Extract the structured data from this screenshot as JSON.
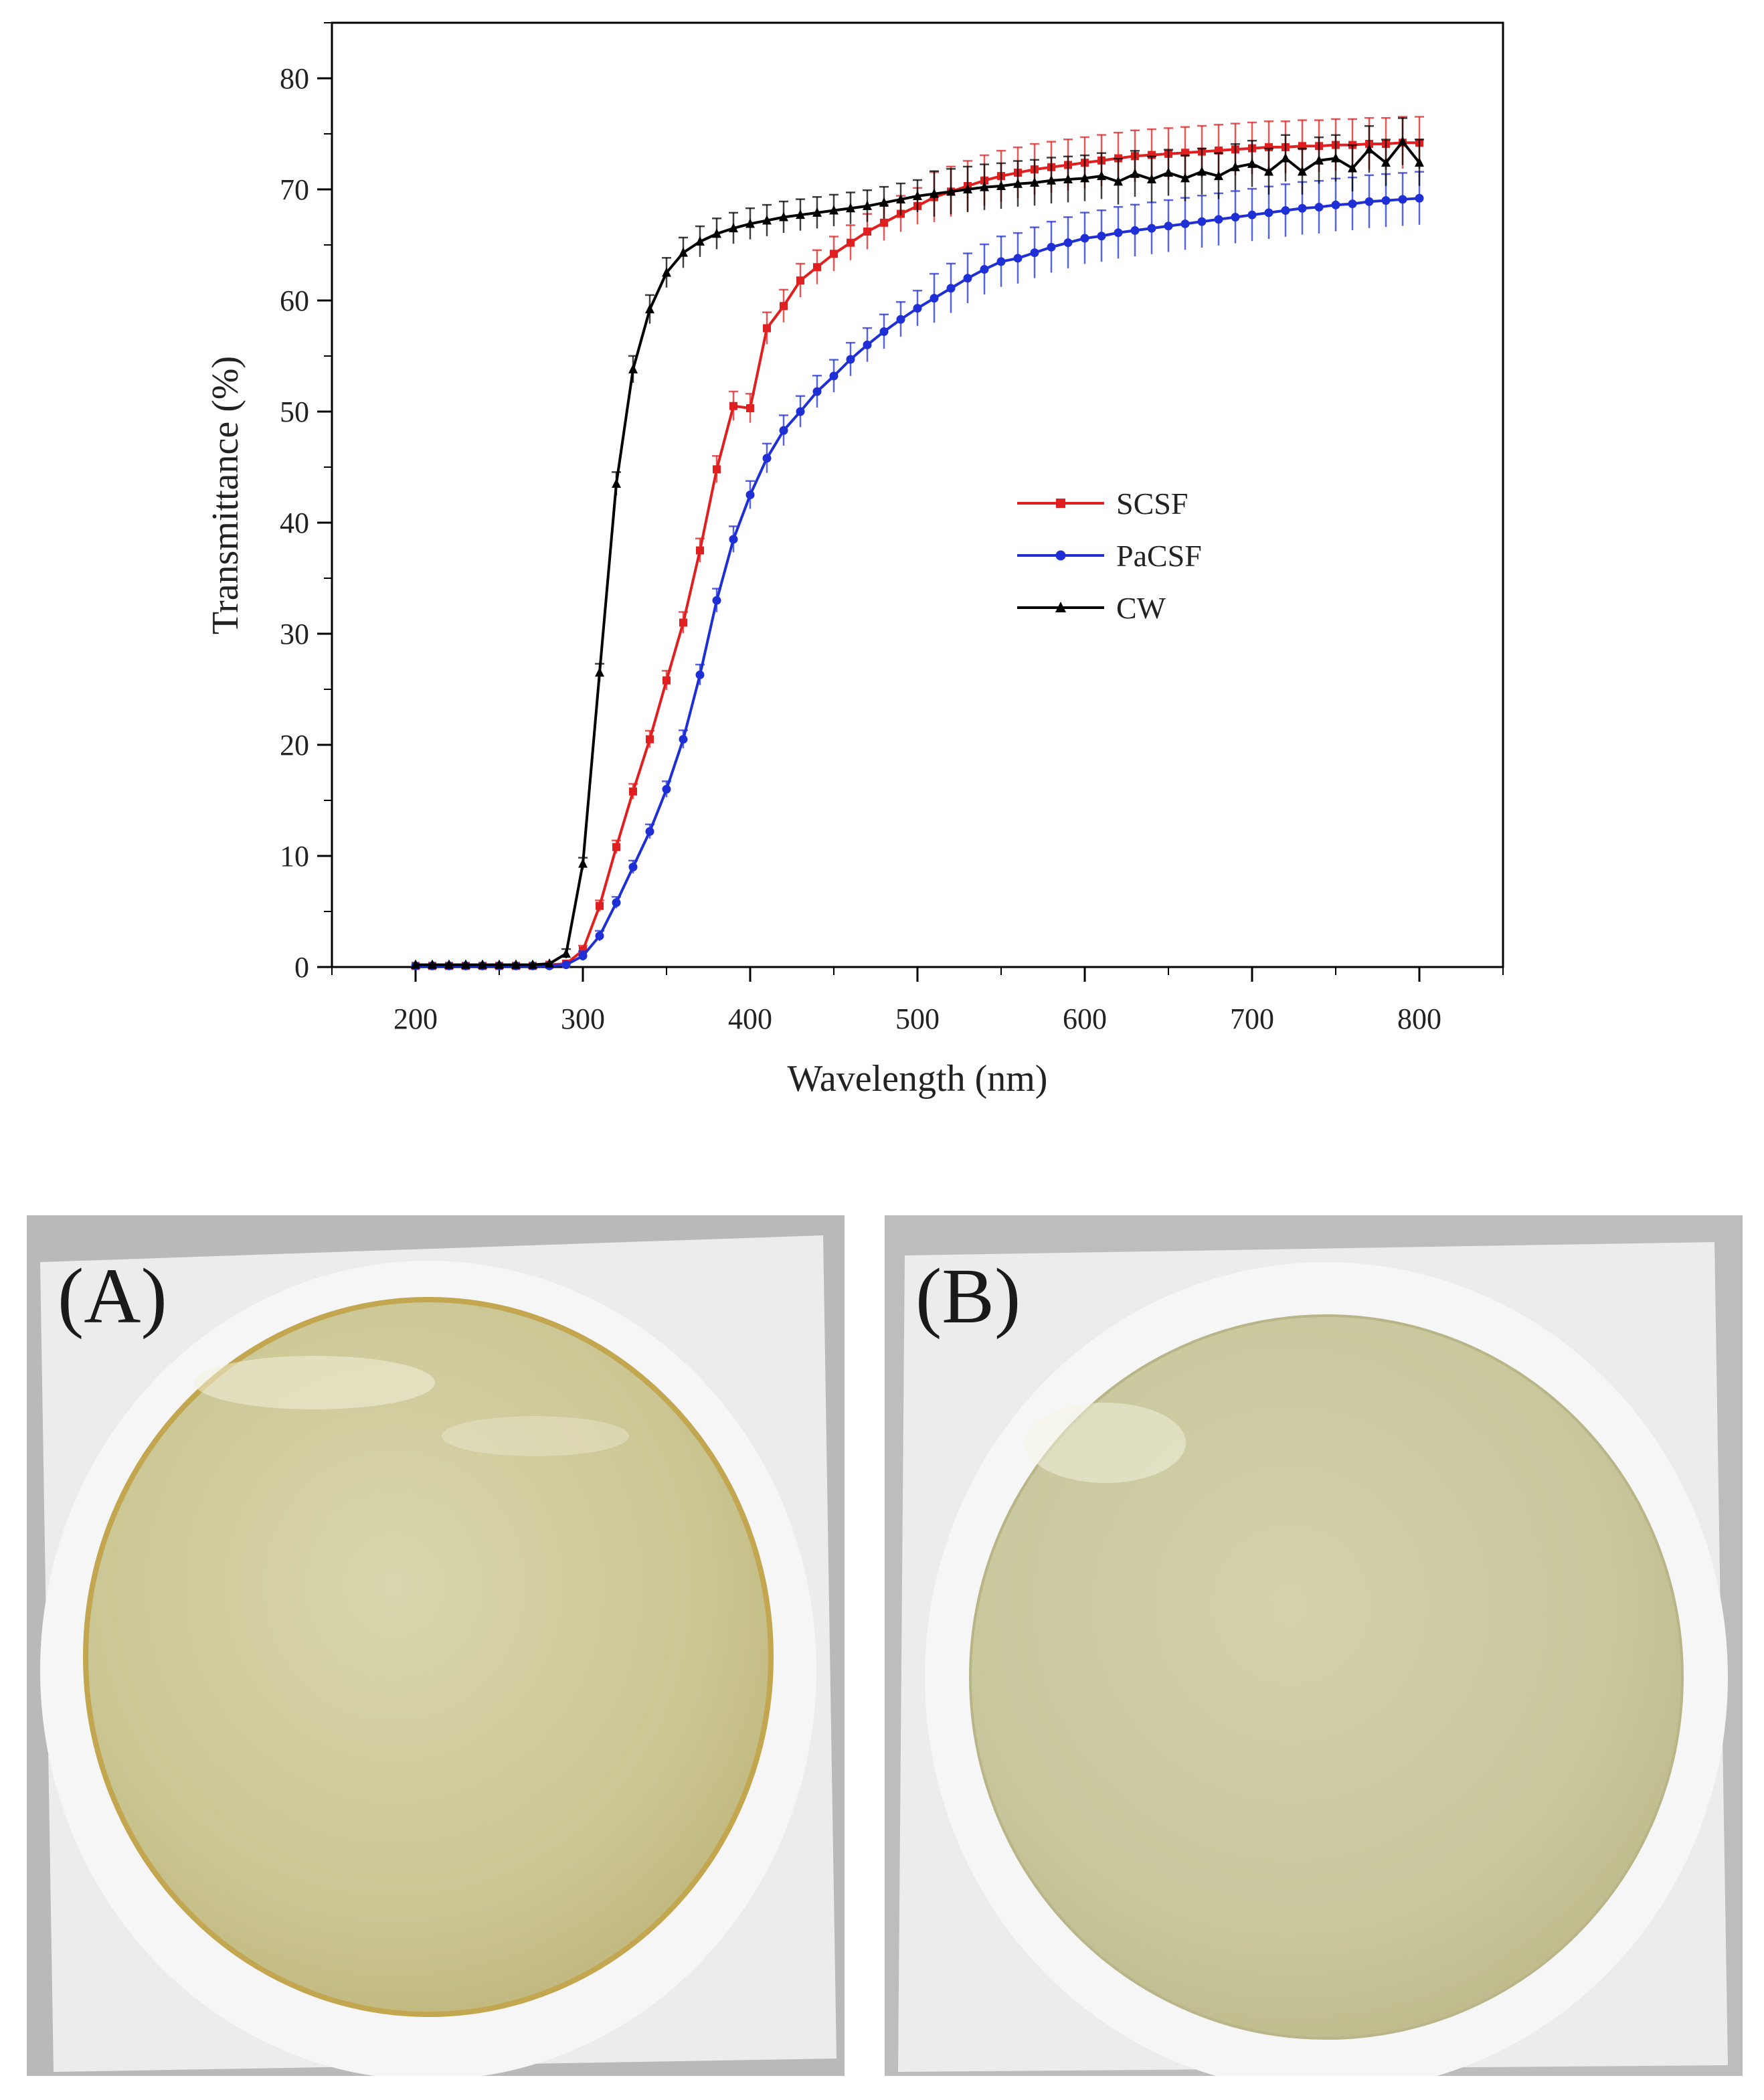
{
  "figure": {
    "photo_a_label": "(A)",
    "photo_b_label": "(B)"
  },
  "colors": {
    "SCSF": "#e02020",
    "PaCSF": "#1f2fd6",
    "CW": "#000000",
    "photo_background": "#bdbdbd",
    "paper": "#efefef",
    "film_a": "#cfcb9a",
    "film_b": "#c9c79e"
  },
  "chart_data": {
    "type": "line",
    "title": "",
    "xlabel": "Wavelength (nm)",
    "ylabel": "Transmittance (%)",
    "xlim": [
      150,
      850
    ],
    "ylim": [
      0,
      85
    ],
    "xticks": [
      200,
      300,
      400,
      500,
      600,
      700,
      800
    ],
    "yticks": [
      0,
      10,
      20,
      30,
      40,
      50,
      60,
      70,
      80
    ],
    "x": [
      200,
      210,
      220,
      230,
      240,
      250,
      260,
      270,
      280,
      290,
      300,
      310,
      320,
      330,
      340,
      350,
      360,
      370,
      380,
      390,
      400,
      410,
      420,
      430,
      440,
      450,
      460,
      470,
      480,
      490,
      500,
      510,
      520,
      530,
      540,
      550,
      560,
      570,
      580,
      590,
      600,
      610,
      620,
      630,
      640,
      650,
      660,
      670,
      680,
      690,
      700,
      710,
      720,
      730,
      740,
      750,
      760,
      770,
      780,
      790,
      800
    ],
    "legend_position": "center-right",
    "series": [
      {
        "name": "SCSF",
        "marker": "square",
        "values": [
          0.1,
          0.1,
          0.1,
          0.1,
          0.1,
          0.1,
          0.1,
          0.1,
          0.2,
          0.3,
          1.5,
          5.5,
          10.8,
          15.8,
          20.5,
          25.8,
          31.0,
          37.5,
          44.8,
          50.5,
          50.3,
          57.5,
          59.5,
          61.8,
          63.0,
          64.2,
          65.2,
          66.2,
          67.0,
          67.8,
          68.5,
          69.3,
          69.8,
          70.3,
          70.8,
          71.2,
          71.5,
          71.8,
          72.0,
          72.2,
          72.4,
          72.6,
          72.8,
          73.0,
          73.1,
          73.2,
          73.3,
          73.4,
          73.5,
          73.6,
          73.7,
          73.8,
          73.8,
          73.9,
          73.9,
          74.0,
          74.0,
          74.1,
          74.1,
          74.2,
          74.2
        ]
      },
      {
        "name": "PaCSF",
        "marker": "circle",
        "values": [
          0.1,
          0.1,
          0.1,
          0.1,
          0.1,
          0.1,
          0.1,
          0.1,
          0.1,
          0.2,
          1.0,
          2.8,
          5.8,
          9.0,
          12.2,
          16.0,
          20.5,
          26.3,
          33.0,
          38.5,
          42.5,
          45.8,
          48.3,
          50.0,
          51.8,
          53.2,
          54.7,
          56.0,
          57.2,
          58.3,
          59.3,
          60.2,
          61.1,
          62.0,
          62.8,
          63.5,
          63.8,
          64.3,
          64.8,
          65.2,
          65.6,
          65.8,
          66.1,
          66.3,
          66.5,
          66.7,
          66.9,
          67.1,
          67.3,
          67.5,
          67.7,
          67.9,
          68.1,
          68.3,
          68.4,
          68.6,
          68.7,
          68.9,
          69.0,
          69.1,
          69.2
        ]
      },
      {
        "name": "CW",
        "marker": "triangle",
        "values": [
          0.2,
          0.2,
          0.2,
          0.2,
          0.2,
          0.2,
          0.2,
          0.2,
          0.3,
          1.2,
          9.3,
          26.5,
          43.5,
          53.8,
          59.2,
          62.5,
          64.3,
          65.3,
          66.0,
          66.5,
          66.9,
          67.2,
          67.5,
          67.7,
          67.9,
          68.1,
          68.3,
          68.5,
          68.8,
          69.1,
          69.4,
          69.6,
          69.8,
          70.0,
          70.2,
          70.3,
          70.5,
          70.6,
          70.8,
          70.9,
          71.0,
          71.2,
          70.7,
          71.4,
          70.9,
          71.5,
          71.0,
          71.6,
          71.2,
          72.0,
          72.3,
          71.6,
          72.8,
          71.6,
          72.6,
          72.8,
          71.9,
          73.6,
          72.4,
          74.3,
          72.4
        ]
      }
    ]
  }
}
